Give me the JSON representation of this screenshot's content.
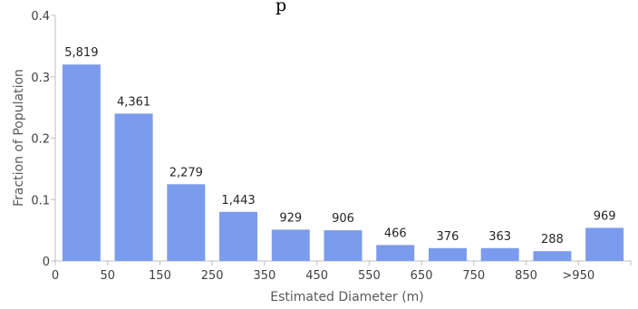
{
  "chart_data": {
    "type": "bar",
    "title_fragment": "p",
    "xlabel": "Estimated Diameter (m)",
    "ylabel": "Fraction of Population",
    "ylim": [
      0,
      0.4
    ],
    "yticks": [
      "0",
      "0.1",
      "0.2",
      "0.3",
      "0.4"
    ],
    "xticks": [
      "0",
      "50",
      "150",
      "250",
      "350",
      "450",
      "550",
      "650",
      "750",
      "850",
      ">950"
    ],
    "values": [
      0.32,
      0.24,
      0.125,
      0.08,
      0.051,
      0.05,
      0.026,
      0.021,
      0.021,
      0.016,
      0.054
    ],
    "data_labels": [
      "5,819",
      "4,361",
      "2,279",
      "1,443",
      "929",
      "906",
      "466",
      "376",
      "363",
      "288",
      "969"
    ],
    "bar_color": "#7b9cec",
    "grid": false
  }
}
